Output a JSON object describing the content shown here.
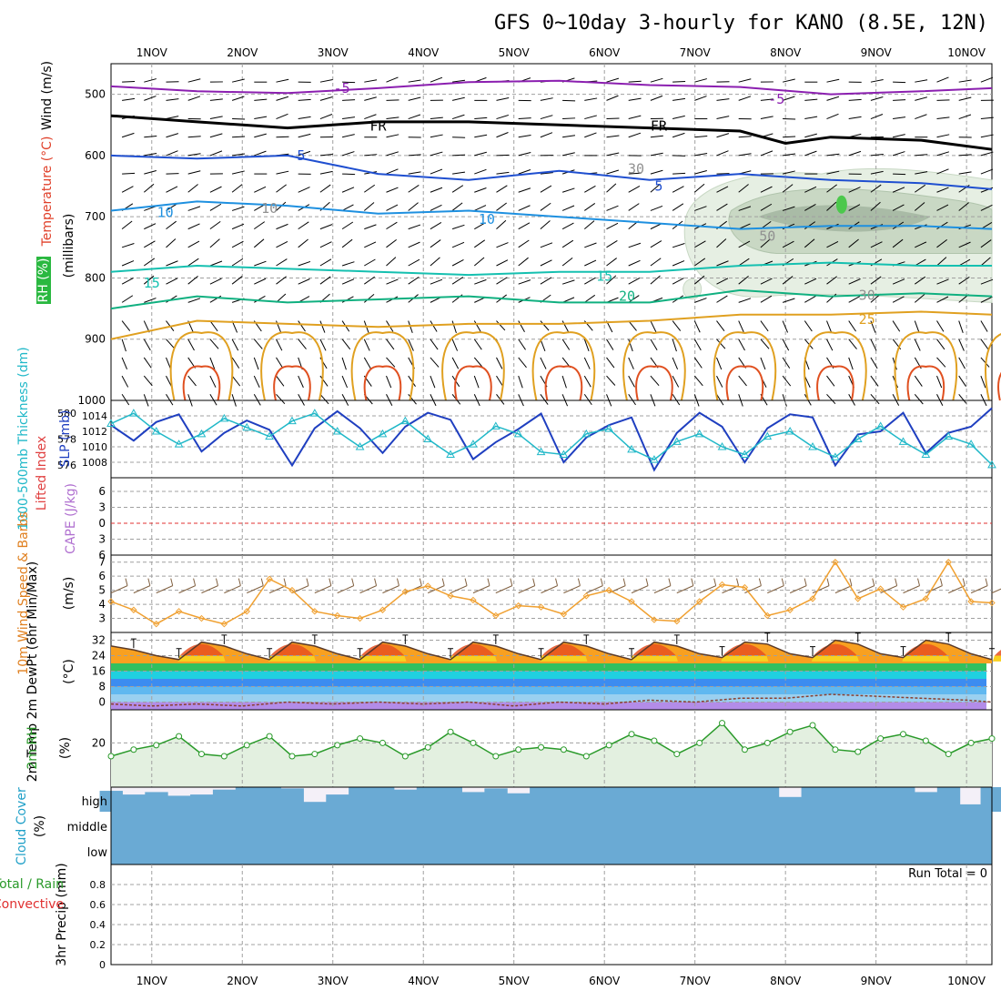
{
  "title": "GFS 0~10day 3-hourly for KANO (8.5E, 12N)",
  "colors": {
    "frame": "#000000",
    "grid": "#a0a0a0",
    "t_minus5": "#8b1fb0",
    "t_fr": "#000000",
    "t_5": "#1f4fd0",
    "t_10": "#1e90e0",
    "t_15": "#15c0b0",
    "t_20": "#10b080",
    "t_25": "#e0a020",
    "t_30": "#e05020",
    "rh_shade": "#a9c9a4",
    "slp": "#1f3fc0",
    "thickness": "#20b8c8",
    "wind10m": "#f0a030",
    "rh2m": "#2a9a2a",
    "rh2m_fill": "#e3f0e0",
    "cloud": "#6aaad4",
    "cloud_bg": "#f4f0f8",
    "zero_line": "#e03030"
  },
  "x_axis": {
    "date_labels": [
      "1NOV",
      "2NOV",
      "3NOV",
      "4NOV",
      "5NOV",
      "6NOV",
      "7NOV",
      "8NOV",
      "9NOV",
      "10NOV"
    ],
    "start_day": 0.55,
    "end_day": 10.28
  },
  "panels": {
    "upper_air": {
      "ylabel": "(millibars)",
      "side_labels": [
        "Wind (m/s)",
        "Temperature (°C)",
        "RH (%)"
      ],
      "yticks": [
        "500",
        "600",
        "700",
        "800",
        "900",
        "1000"
      ],
      "contour_labels": [
        "-5",
        "-5",
        "FR",
        "FR",
        "5",
        "5",
        "10",
        "10",
        "10",
        "15",
        "15",
        "20",
        "25",
        "30",
        "30",
        "50"
      ]
    },
    "pressure": {
      "left_label": "1000-500mb Thickness (dm)",
      "right_label": "SLP (mb)",
      "thickness_ticks": [
        "580",
        "578",
        "576"
      ],
      "slp_ticks": [
        "1014",
        "1012",
        "1010",
        "1008"
      ]
    },
    "stability": {
      "left_label": "Lifted Index",
      "right_label": "CAPE (J/kg)",
      "yticks": [
        "6",
        "3",
        "0",
        "3",
        "6"
      ]
    },
    "wind10m": {
      "label": "10m Wind Speed & Barbs",
      "unit": "(m/s)",
      "yticks": [
        "7",
        "6",
        "5",
        "4",
        "3"
      ]
    },
    "temp2m": {
      "label": "2m Temp 2m DewPt (6hr Min/Max)",
      "unit": "(°C)",
      "yticks": [
        "32",
        "24",
        "16",
        "8",
        "0"
      ]
    },
    "rh2m": {
      "label": "2m RH",
      "unit": "(%)",
      "yticks": [
        "20"
      ]
    },
    "cloud": {
      "label": "Cloud Cover",
      "unit": "(%)",
      "levels": [
        "high",
        "middle",
        "low"
      ]
    },
    "precip": {
      "label": "3hr Precip (mm)",
      "legend_1": "Total / Rain",
      "legend_2": "Convective",
      "run_total": "Run Total = 0",
      "yticks": [
        "0.8",
        "0.6",
        "0.4",
        "0.2",
        "0"
      ]
    }
  },
  "chart_data": [
    {
      "type": "line",
      "title": "Temperature (°C) at 500–1000 mb",
      "x_unit": "day of November",
      "series": [
        {
          "name": "-5",
          "x": [
            0.55,
            1.5,
            2.5,
            3.5,
            4.5,
            5.5,
            6.5,
            7.5,
            8.5,
            9.5,
            10.28
          ],
          "y": [
            487,
            495,
            498,
            490,
            480,
            478,
            485,
            488,
            500,
            495,
            490
          ]
        },
        {
          "name": "FR",
          "x": [
            0.55,
            1.5,
            2.5,
            3.5,
            4.5,
            5.5,
            6.5,
            7.5,
            8.0,
            8.5,
            9.5,
            10.28
          ],
          "y": [
            535,
            545,
            555,
            545,
            545,
            550,
            555,
            560,
            580,
            570,
            575,
            590
          ]
        },
        {
          "name": "5",
          "x": [
            0.55,
            1.5,
            2.5,
            3.5,
            4.5,
            5.5,
            6.5,
            7.5,
            8.5,
            9.5,
            10.28
          ],
          "y": [
            600,
            605,
            600,
            630,
            640,
            625,
            640,
            630,
            640,
            645,
            655
          ]
        },
        {
          "name": "10",
          "x": [
            0.55,
            1.5,
            2.5,
            3.5,
            4.5,
            5.5,
            6.5,
            7.5,
            8.5,
            9.5,
            10.28
          ],
          "y": [
            690,
            675,
            682,
            695,
            690,
            700,
            710,
            720,
            715,
            715,
            720
          ]
        },
        {
          "name": "15",
          "x": [
            0.55,
            1.5,
            2.5,
            3.5,
            4.5,
            5.5,
            6.5,
            7.5,
            8.5,
            9.5,
            10.28
          ],
          "y": [
            790,
            780,
            785,
            790,
            795,
            790,
            790,
            780,
            775,
            780,
            780
          ]
        },
        {
          "name": "20",
          "x": [
            0.55,
            1.5,
            2.5,
            3.5,
            4.5,
            5.5,
            6.5,
            7.5,
            8.5,
            9.5,
            10.28
          ],
          "y": [
            850,
            830,
            840,
            835,
            830,
            840,
            840,
            820,
            830,
            825,
            830
          ]
        },
        {
          "name": "25",
          "x": [
            0.55,
            1.5,
            2.5,
            3.5,
            4.5,
            5.5,
            6.5,
            7.5,
            8.5,
            9.5,
            10.28
          ],
          "y": [
            900,
            870,
            875,
            880,
            875,
            875,
            870,
            860,
            860,
            855,
            860
          ]
        }
      ],
      "ylim": [
        1000,
        450
      ]
    },
    {
      "type": "line",
      "title": "Sea level pressure (mb)",
      "x": [
        0.55,
        0.8,
        1.05,
        1.3,
        1.55,
        1.8,
        2.05,
        2.3,
        2.55,
        2.8,
        3.05,
        3.3,
        3.55,
        3.8,
        4.05,
        4.3,
        4.55,
        4.8,
        5.05,
        5.3,
        5.55,
        5.8,
        6.05,
        6.3,
        6.55,
        6.8,
        7.05,
        7.3,
        7.55,
        7.8,
        8.05,
        8.3,
        8.55,
        8.8,
        9.05,
        9.3,
        9.55,
        9.8,
        10.05,
        10.28
      ],
      "y": [
        1012.8,
        1010.8,
        1013.2,
        1014.2,
        1009.4,
        1011.8,
        1013.4,
        1012.2,
        1007.6,
        1012.4,
        1014.6,
        1012.4,
        1009.2,
        1012.6,
        1014.4,
        1013.5,
        1008.4,
        1010.6,
        1012.3,
        1014.3,
        1008.0,
        1011.2,
        1012.8,
        1013.8,
        1007.0,
        1011.8,
        1014.4,
        1012.6,
        1008.0,
        1012.4,
        1014.2,
        1013.8,
        1007.6,
        1011.6,
        1012.0,
        1014.4,
        1009.2,
        1011.8,
        1012.6,
        1015.0
      ],
      "ylim": [
        1006,
        1016
      ]
    },
    {
      "type": "line",
      "title": "1000-500mb thickness (dm)",
      "x": [
        0.55,
        0.8,
        1.05,
        1.3,
        1.55,
        1.8,
        2.05,
        2.3,
        2.55,
        2.8,
        3.05,
        3.3,
        3.55,
        3.8,
        4.05,
        4.3,
        4.55,
        4.8,
        5.05,
        5.3,
        5.55,
        5.8,
        6.05,
        6.3,
        6.55,
        6.8,
        7.05,
        7.3,
        7.55,
        7.8,
        8.05,
        8.3,
        8.55,
        8.8,
        9.05,
        9.3,
        9.55,
        9.8,
        10.05,
        10.28
      ],
      "y": [
        579.2,
        580.0,
        578.6,
        577.6,
        578.4,
        579.6,
        578.9,
        578.2,
        579.4,
        580.0,
        578.6,
        577.4,
        578.4,
        579.4,
        578.0,
        576.8,
        577.6,
        579.0,
        578.4,
        577.0,
        576.8,
        578.4,
        578.8,
        577.2,
        576.4,
        577.8,
        578.4,
        577.4,
        576.8,
        578.2,
        578.6,
        577.4,
        576.6,
        578.0,
        579.0,
        577.8,
        576.8,
        578.2,
        577.6,
        576.0
      ],
      "ylim": [
        575,
        581
      ]
    },
    {
      "type": "line",
      "title": "10m wind speed (m/s)",
      "x": [
        0.55,
        0.8,
        1.05,
        1.3,
        1.55,
        1.8,
        2.05,
        2.3,
        2.55,
        2.8,
        3.05,
        3.3,
        3.55,
        3.8,
        4.05,
        4.3,
        4.55,
        4.8,
        5.05,
        5.3,
        5.55,
        5.8,
        6.05,
        6.3,
        6.55,
        6.8,
        7.05,
        7.3,
        7.55,
        7.8,
        8.05,
        8.3,
        8.55,
        8.8,
        9.05,
        9.3,
        9.55,
        9.8,
        10.05,
        10.28
      ],
      "y": [
        4.2,
        3.6,
        2.6,
        3.5,
        3.0,
        2.6,
        3.5,
        5.8,
        5.0,
        3.5,
        3.2,
        3.0,
        3.6,
        4.9,
        5.3,
        4.6,
        4.3,
        3.2,
        3.9,
        3.8,
        3.3,
        4.6,
        5.0,
        4.2,
        2.9,
        2.8,
        4.2,
        5.4,
        5.2,
        3.2,
        3.6,
        4.4,
        7.0,
        4.4,
        5.1,
        3.8,
        4.4,
        7.0,
        4.2,
        4.1
      ],
      "ylim": [
        2,
        7.5
      ]
    },
    {
      "type": "area",
      "title": "2m temperature (°C)",
      "x": [
        0.55,
        0.8,
        1.05,
        1.3,
        1.55,
        1.8,
        2.05,
        2.3,
        2.55,
        2.8,
        3.05,
        3.3,
        3.55,
        3.8,
        4.05,
        4.3,
        4.55,
        4.8,
        5.05,
        5.3,
        5.55,
        5.8,
        6.05,
        6.3,
        6.55,
        6.8,
        7.05,
        7.3,
        7.55,
        7.8,
        8.05,
        8.3,
        8.55,
        8.8,
        9.05,
        9.3,
        9.55,
        9.8,
        10.05,
        10.28
      ],
      "y": [
        29,
        27,
        24,
        22,
        31,
        29,
        25,
        22,
        31,
        29,
        25,
        22,
        31,
        29,
        25,
        22,
        31,
        29,
        25,
        22,
        31,
        29,
        25,
        22,
        31,
        29,
        25,
        23,
        31,
        30,
        25,
        23,
        32,
        30,
        25,
        23,
        32,
        30,
        25,
        22
      ],
      "ylim": [
        -4,
        36
      ]
    },
    {
      "type": "line",
      "title": "2m dewpoint (°C)",
      "x": [
        0.55,
        1.0,
        1.5,
        2.0,
        2.5,
        3.0,
        3.5,
        4.0,
        4.5,
        5.0,
        5.5,
        6.0,
        6.5,
        7.0,
        7.5,
        8.0,
        8.5,
        9.0,
        9.5,
        10.0,
        10.28
      ],
      "y": [
        -1,
        -2,
        -1,
        -2,
        0,
        -1,
        0,
        -1,
        0,
        -2,
        0,
        -1,
        1,
        0,
        2,
        2,
        4,
        3,
        2,
        1,
        0
      ],
      "ylim": [
        -4,
        36
      ]
    },
    {
      "type": "area",
      "title": "2m relative humidity (%)",
      "x": [
        0.55,
        0.8,
        1.05,
        1.3,
        1.55,
        1.8,
        2.05,
        2.3,
        2.55,
        2.8,
        3.05,
        3.3,
        3.55,
        3.8,
        4.05,
        4.3,
        4.55,
        4.8,
        5.05,
        5.3,
        5.55,
        5.8,
        6.05,
        6.3,
        6.55,
        6.8,
        7.05,
        7.3,
        7.55,
        7.8,
        8.05,
        8.3,
        8.55,
        8.8,
        9.05,
        9.3,
        9.55,
        9.8,
        10.05,
        10.28
      ],
      "y": [
        14,
        17,
        19,
        23,
        15,
        14,
        19,
        23,
        14,
        15,
        19,
        22,
        20,
        14,
        18,
        25,
        20,
        14,
        17,
        18,
        17,
        14,
        19,
        24,
        21,
        15,
        20,
        29,
        17,
        20,
        25,
        28,
        17,
        16,
        22,
        24,
        21,
        15,
        20,
        22
      ],
      "ylim": [
        0,
        35
      ]
    },
    {
      "type": "bar",
      "title": "High cloud cover (%)",
      "x": [
        0.55,
        0.8,
        1.05,
        1.3,
        1.55,
        1.8,
        2.05,
        2.3,
        2.55,
        2.8,
        3.05,
        3.3,
        3.55,
        3.8,
        4.05,
        4.3,
        4.55,
        4.8,
        5.05,
        5.3,
        5.55,
        5.8,
        6.05,
        6.3,
        6.55,
        6.8,
        7.05,
        7.3,
        7.55,
        7.8,
        8.05,
        8.3,
        8.55,
        8.8,
        9.05,
        9.3,
        9.55,
        9.8,
        10.05,
        10.28
      ],
      "values": [
        85,
        70,
        80,
        65,
        70,
        90,
        100,
        100,
        95,
        40,
        70,
        100,
        100,
        90,
        100,
        100,
        80,
        95,
        75,
        100,
        100,
        100,
        100,
        100,
        100,
        100,
        100,
        100,
        100,
        100,
        60,
        100,
        100,
        100,
        100,
        100,
        80,
        100,
        30,
        100
      ],
      "ylim": [
        0,
        100
      ]
    },
    {
      "type": "bar",
      "title": "3hr precipitation (mm)",
      "x": [
        0.55,
        10.28
      ],
      "values": [
        0,
        0
      ],
      "ylim": [
        0,
        1
      ]
    }
  ]
}
